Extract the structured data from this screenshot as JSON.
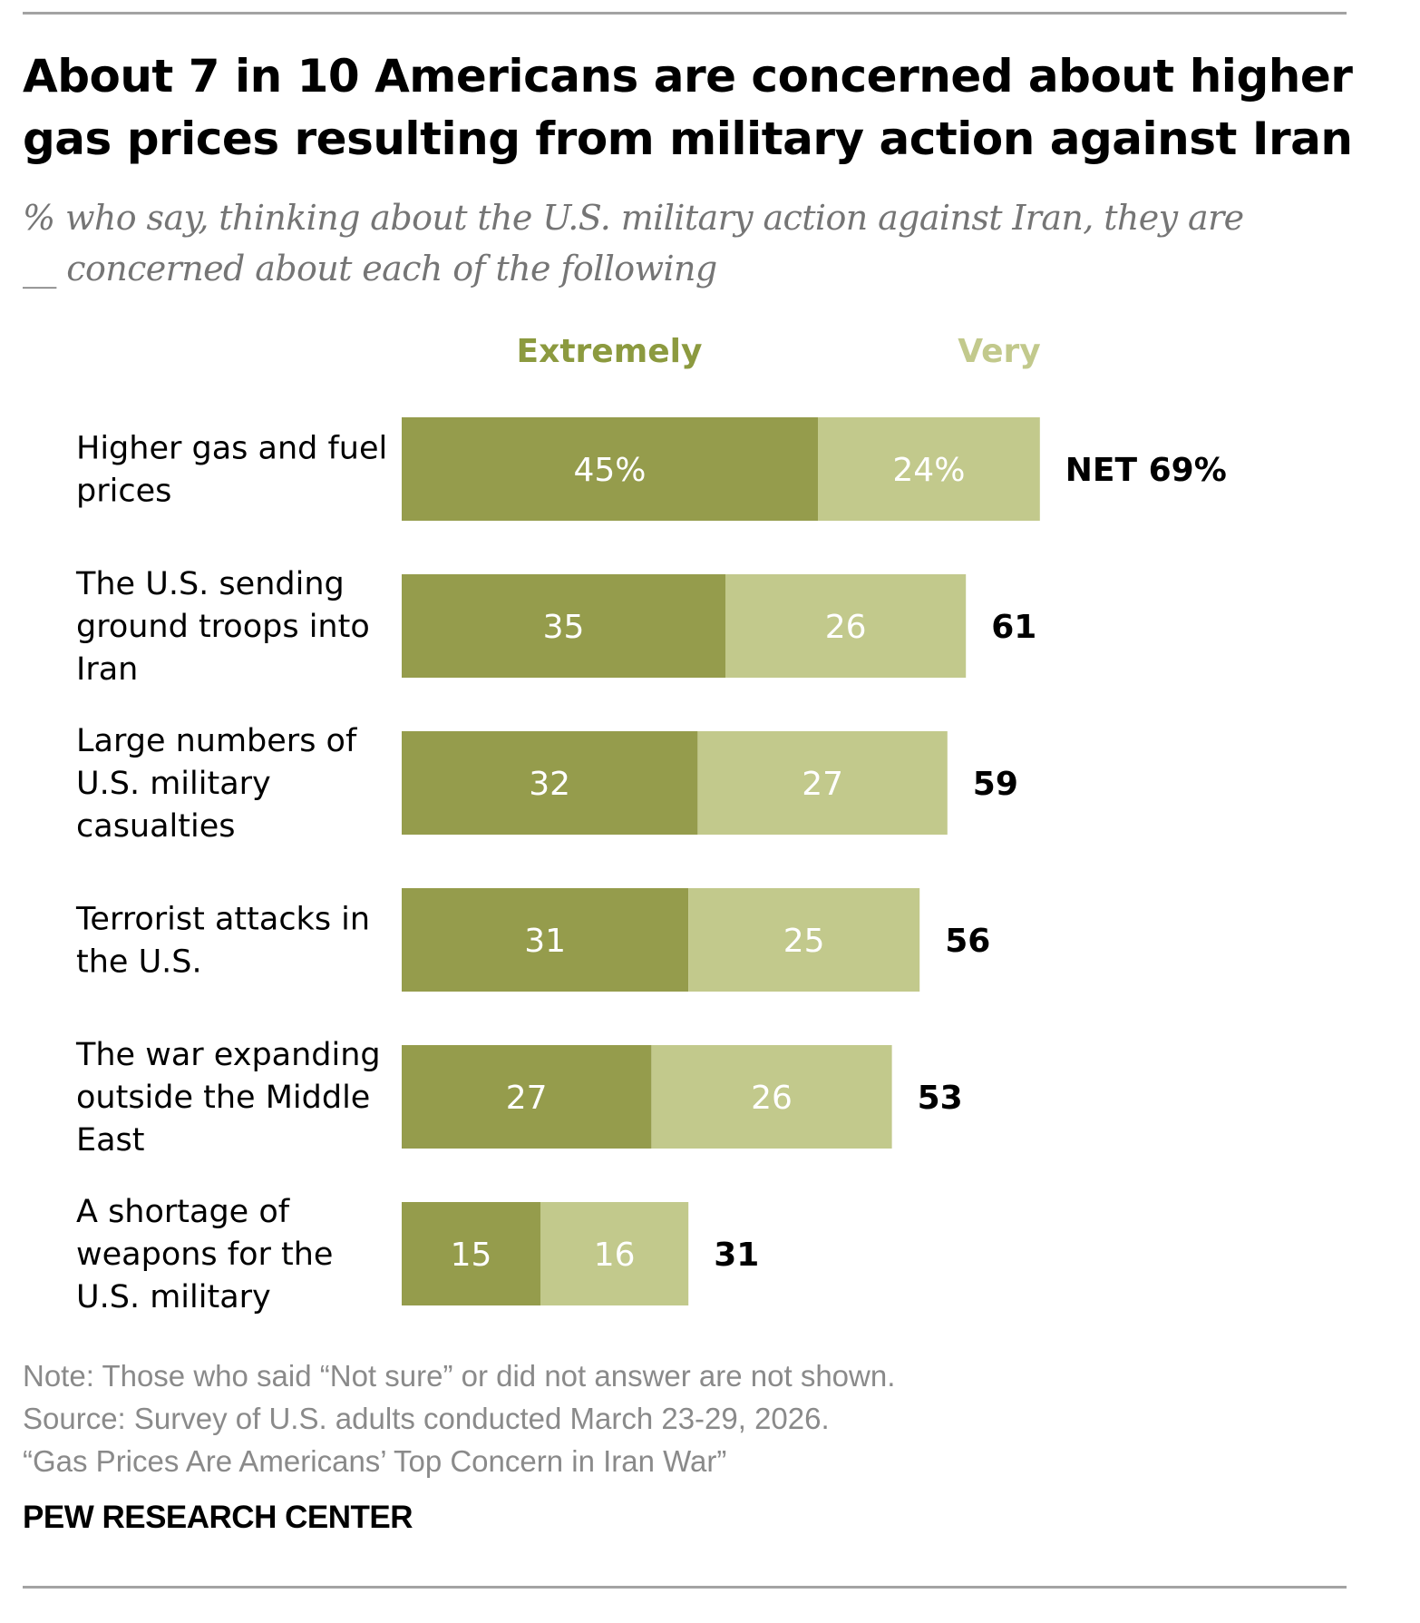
{
  "chart_data": {
    "type": "bar",
    "orientation": "horizontal",
    "stacked": true,
    "title": [
      "About 7 in 10 Americans are concerned about higher",
      "gas prices resulting from military action against Iran"
    ],
    "subtitle": [
      "% who say, thinking about the U.S. military action against Iran, they are",
      "__ concerned about each of the following"
    ],
    "legend": [
      "Extremely",
      "Very"
    ],
    "legend_placement": "top",
    "grid": false,
    "xlim": [
      0,
      100
    ],
    "categories": [
      [
        "Higher gas and fuel",
        "prices"
      ],
      [
        "The U.S. sending",
        "ground troops into",
        "Iran"
      ],
      [
        "Large numbers of",
        "U.S. military",
        "casualties"
      ],
      [
        "Terrorist attacks in",
        "the U.S."
      ],
      [
        "The war expanding",
        "outside the Middle",
        "East"
      ],
      [
        "A shortage of",
        "weapons for the",
        "U.S. military"
      ]
    ],
    "series": [
      {
        "name": "Extremely",
        "color": "#959c4c",
        "values": [
          45,
          35,
          32,
          31,
          27,
          15
        ],
        "labels": [
          "45%",
          "35",
          "32",
          "31",
          "27",
          "15"
        ]
      },
      {
        "name": "Very",
        "color": "#c2c98c",
        "values": [
          24,
          26,
          27,
          25,
          26,
          16
        ],
        "labels": [
          "24%",
          "26",
          "27",
          "25",
          "26",
          "16"
        ]
      }
    ],
    "net": {
      "values": [
        69,
        61,
        59,
        56,
        53,
        31
      ],
      "labels": [
        "NET 69%",
        "61",
        "59",
        "56",
        "53",
        "31"
      ]
    }
  },
  "colors": {
    "extremely_label": "#8c9a3f",
    "very_label": "#c2c98c"
  },
  "note": [
    "Note: Those who said “Not sure” or did not answer are not shown.",
    "Source: Survey of U.S. adults conducted March 23-29, 2026.",
    "“Gas Prices Are Americans’ Top Concern in Iran War”"
  ],
  "brand": "PEW RESEARCH CENTER"
}
